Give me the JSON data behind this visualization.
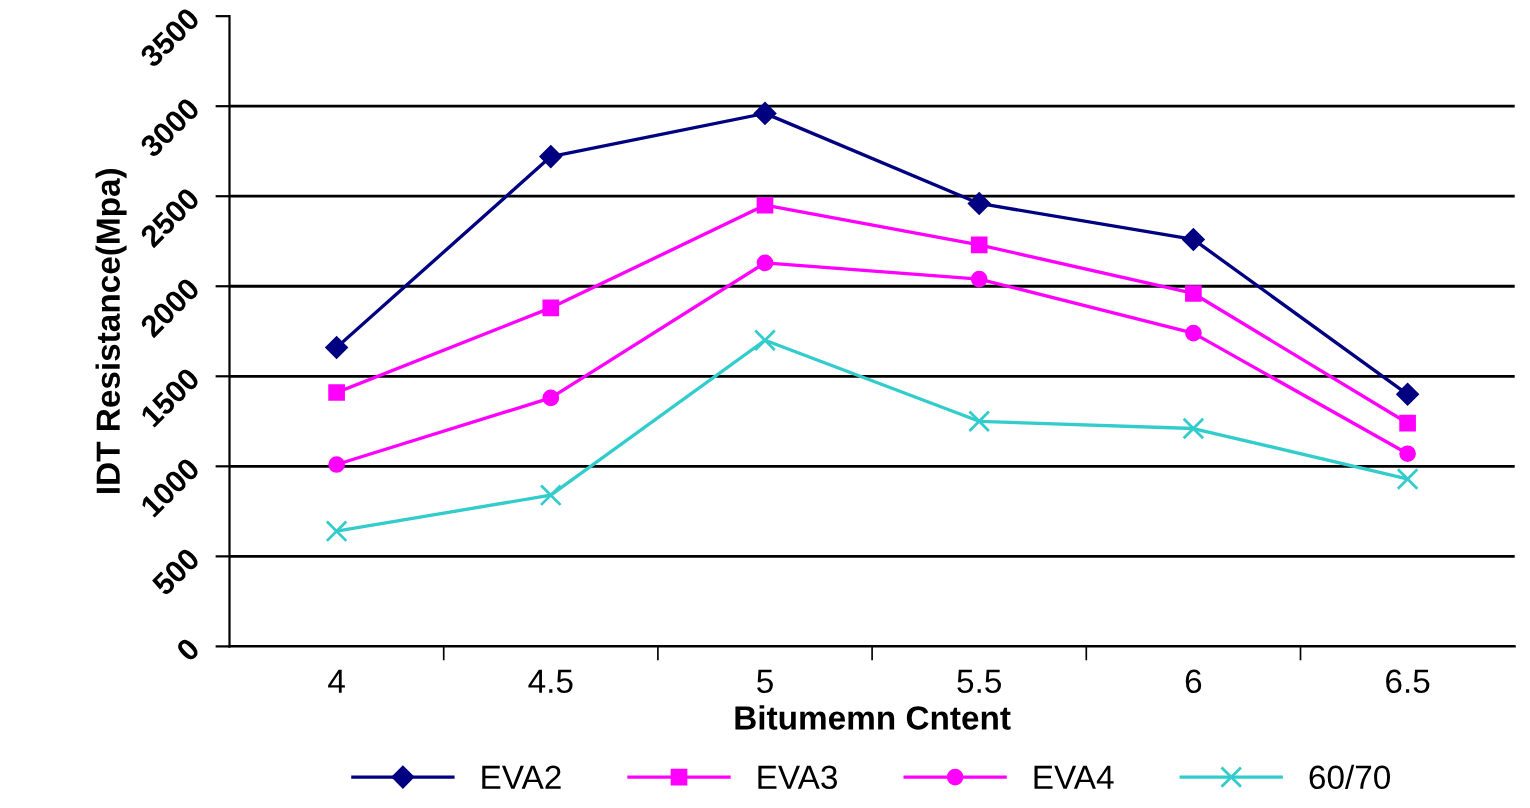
{
  "chart_data": {
    "type": "line",
    "xlabel": "Bitumemn Cntent",
    "ylabel": "IDT Resistance(Mpa)",
    "categories": [
      "4",
      "4.5",
      "5",
      "5.5",
      "6",
      "6.5"
    ],
    "series": [
      {
        "name": "EVA2",
        "color": "#000080",
        "marker": "diamond",
        "values": [
          1660,
          2720,
          2960,
          2460,
          2260,
          1400
        ]
      },
      {
        "name": "EVA3",
        "color": "#ff00ff",
        "marker": "square",
        "values": [
          1410,
          1880,
          2450,
          2230,
          1960,
          1240
        ]
      },
      {
        "name": "EVA4",
        "color": "#ff00ff",
        "marker": "circle",
        "values": [
          1010,
          1380,
          2130,
          2040,
          1740,
          1070
        ]
      },
      {
        "name": "60/70",
        "color": "#33cccc",
        "marker": "cross",
        "values": [
          640,
          840,
          1700,
          1250,
          1210,
          930
        ]
      }
    ],
    "ylim": [
      0,
      3500
    ],
    "yticks": [
      0,
      500,
      1000,
      1500,
      2000,
      2500,
      3000,
      3500
    ],
    "grid": "y",
    "legend": "bottom",
    "line_style": "solid"
  }
}
